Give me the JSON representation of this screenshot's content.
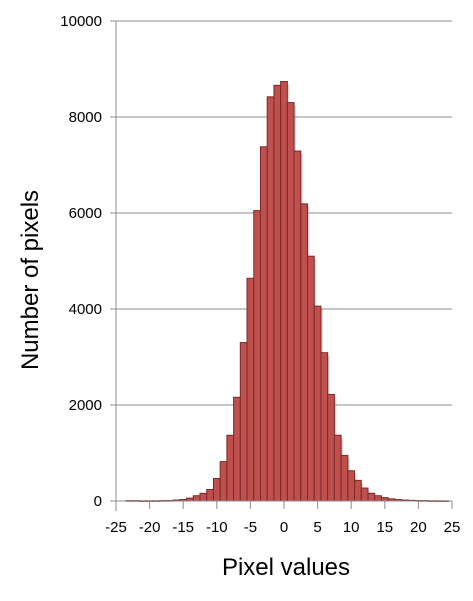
{
  "chart_data": {
    "type": "bar",
    "title": "",
    "xlabel": "Pixel values",
    "ylabel": "Number of pixels",
    "xlim": [
      -25,
      25
    ],
    "ylim": [
      0,
      10000
    ],
    "x_ticks": [
      "-25",
      "-20",
      "-15",
      "-10",
      "-5",
      "0",
      "5",
      "10",
      "15",
      "20",
      "25"
    ],
    "y_ticks": [
      "0",
      "2000",
      "4000",
      "6000",
      "8000",
      "10000"
    ],
    "grid": true,
    "legend": "none",
    "bar_color": "#c0504d",
    "bin_width": 1,
    "x": [
      -23,
      -22,
      -21,
      -20,
      -19,
      -18,
      -17,
      -16,
      -15,
      -14,
      -13,
      -12,
      -11,
      -10,
      -9,
      -8,
      -7,
      -6,
      -5,
      -4,
      -3,
      -2,
      -1,
      0,
      1,
      2,
      3,
      4,
      5,
      6,
      7,
      8,
      9,
      10,
      11,
      12,
      13,
      14,
      15,
      16,
      17,
      18,
      19,
      20,
      21,
      22,
      23,
      24
    ],
    "values": [
      8,
      8,
      4,
      5,
      6,
      8,
      10,
      20,
      30,
      60,
      110,
      160,
      240,
      470,
      820,
      1370,
      2160,
      3300,
      4640,
      6050,
      7380,
      8420,
      8660,
      8740,
      8300,
      7290,
      6190,
      5100,
      4060,
      3090,
      2220,
      1370,
      950,
      630,
      430,
      270,
      160,
      110,
      70,
      45,
      30,
      20,
      14,
      10,
      8,
      5,
      4,
      3
    ]
  }
}
